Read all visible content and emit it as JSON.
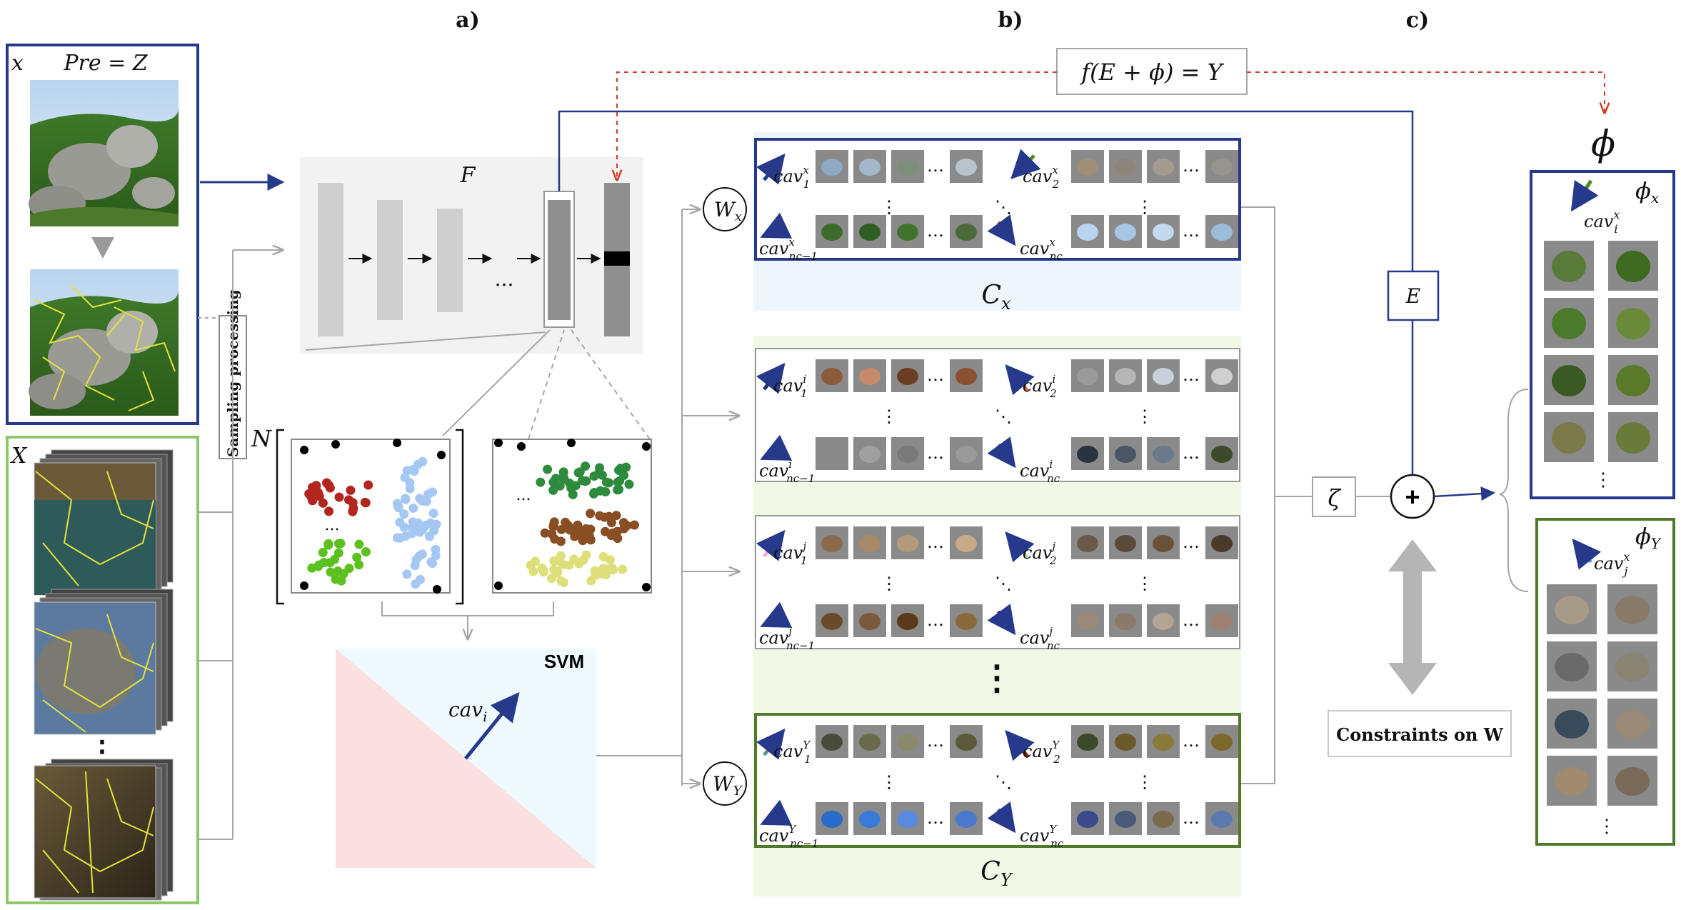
{
  "sections": {
    "a": "a)",
    "b": "b)",
    "c": "c)"
  },
  "input_panel": {
    "label_x": "x",
    "pre_eq": "Pre = Z",
    "sampling_label": "Sampling processing"
  },
  "dataset_panel": {
    "label_X": "X",
    "dots": "⋮"
  },
  "feature_net": {
    "label": "F",
    "dots": "..."
  },
  "concept_points": {
    "label_N": "N",
    "dots": "..."
  },
  "svm": {
    "label": "SVM",
    "cav_base": "cav",
    "cav_sub": "i"
  },
  "equation": {
    "text": "f(E + ϕ) = Y"
  },
  "weights": {
    "wx_base": "W",
    "wx_sub": "x",
    "wy_base": "W",
    "wy_sub": "Y"
  },
  "concept_sets": {
    "cx_base": "C",
    "cx_sub": "x",
    "cy_base": "C",
    "cy_sub": "Y",
    "vdots": "⋮",
    "hdots": "…",
    "ddots": "⋱",
    "big_vdots": "⋮"
  },
  "cav_rows": [
    {
      "sup": "x",
      "labels": [
        {
          "base": "cav",
          "sub": "1"
        },
        {
          "base": "cav",
          "sub": "2"
        },
        {
          "base": "cav",
          "sub": "nc−1"
        },
        {
          "base": "cav",
          "sub": "nc"
        }
      ],
      "colors": [
        "#1f3c8a",
        "#4e8a1b",
        "#6aa6e8",
        "#d8413a"
      ]
    },
    {
      "sup": "i",
      "labels": [
        {
          "base": "cav",
          "sub": "1"
        },
        {
          "base": "cav",
          "sub": "2"
        },
        {
          "base": "cav",
          "sub": "nc−1"
        },
        {
          "base": "cav",
          "sub": "nc"
        }
      ],
      "colors": [
        "#1f2e5a",
        "#e06a5a",
        "#8a4a12",
        "#8fbdb5"
      ]
    },
    {
      "sup": "j",
      "labels": [
        {
          "base": "cav",
          "sub": "1"
        },
        {
          "base": "cav",
          "sub": "2"
        },
        {
          "base": "cav",
          "sub": "nc−1"
        },
        {
          "base": "cav",
          "sub": "nc"
        }
      ],
      "colors": [
        "#f2a9d6",
        "#b5e0a0",
        "#a8b8e8",
        "#4b148a"
      ]
    },
    {
      "sup": "Y",
      "labels": [
        {
          "base": "cav",
          "sub": "1"
        },
        {
          "base": "cav",
          "sub": "2"
        },
        {
          "base": "cav",
          "sub": "nc−1"
        },
        {
          "base": "cav",
          "sub": "nc"
        }
      ],
      "colors": [
        "#5b9a8a",
        "#8a2010",
        "#f0908c",
        "#3b6fe0"
      ]
    }
  ],
  "combine": {
    "zeta": "ζ",
    "E": "E",
    "plus": "+",
    "constraints": "Constraints on W"
  },
  "output": {
    "phi": "ϕ",
    "phi_x_base": "ϕ",
    "phi_x_sub": "x",
    "phi_y_base": "ϕ",
    "phi_y_sub": "Y",
    "cav_x_base": "cav",
    "cav_x_sup": "x",
    "cav_x_sub": "i",
    "cav_y_base": "cav",
    "cav_y_sup": "x",
    "cav_y_sub": "j",
    "dots": "⋮"
  },
  "colors": {
    "navy": "#27398a",
    "green": "#4e7a2a",
    "lightgreen": "#8dc866",
    "gray_line": "#a6a6a6",
    "red_dash": "#d0402a",
    "panel_blue": "#eef6fd",
    "panel_green": "#f1f8e6",
    "svm_pink": "#fbe0e0",
    "svm_blue": "#eefaff"
  }
}
